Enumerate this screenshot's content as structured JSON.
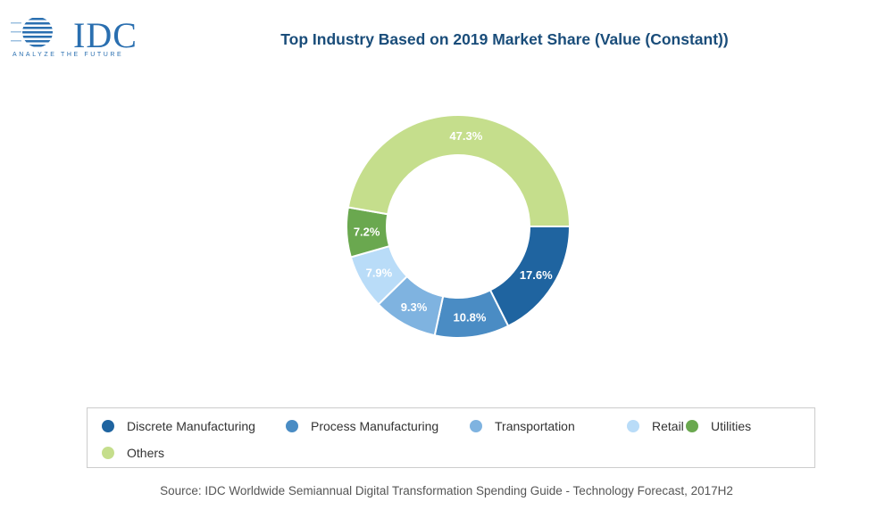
{
  "logo": {
    "text": "IDC",
    "tagline": "ANALYZE THE FUTURE"
  },
  "chart_data": {
    "type": "donut",
    "title": "Top Industry Based on 2019 Market Share (Value (Constant))",
    "categories": [
      "Discrete Manufacturing",
      "Process Manufacturing",
      "Transportation",
      "Retail",
      "Utilities",
      "Others"
    ],
    "values": [
      17.6,
      10.8,
      9.3,
      7.9,
      7.2,
      47.3
    ],
    "labels": [
      "17.6%",
      "10.8%",
      "9.3%",
      "7.9%",
      "7.2%",
      "47.3%"
    ],
    "colors": [
      "#1f64a0",
      "#4a8cc4",
      "#7fb3e0",
      "#b9dcf8",
      "#6aa84f",
      "#c5de8c"
    ],
    "legend_position": "bottom",
    "source": "Source: IDC Worldwide Semiannual Digital Transformation Spending Guide - Technology Forecast, 2017H2"
  }
}
